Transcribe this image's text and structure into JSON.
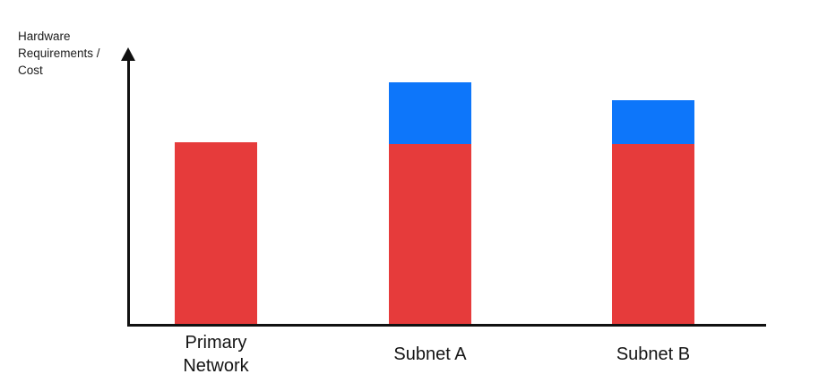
{
  "chart": {
    "y_axis_label": "Hardware\nRequirements /\nCost"
  },
  "chart_data": {
    "type": "bar",
    "stacked": true,
    "title": "",
    "xlabel": "",
    "ylabel": "Hardware Requirements / Cost",
    "categories": [
      "Primary Network",
      "Subnet A",
      "Subnet B"
    ],
    "series": [
      {
        "name": "red-base-segment",
        "color": "#E63B3B",
        "values": [
          100,
          99,
          99
        ]
      },
      {
        "name": "blue-top-segment",
        "color": "#0D76FA",
        "values": [
          0,
          34,
          24
        ]
      }
    ],
    "ylim": [
      0,
      150
    ],
    "grid": false,
    "legend": false
  },
  "colors": {
    "bar_red": "#E63B3B",
    "bar_blue": "#0D76FA",
    "axis": "#111111",
    "text": "#1C1C1C",
    "background": "#FFFFFF"
  }
}
